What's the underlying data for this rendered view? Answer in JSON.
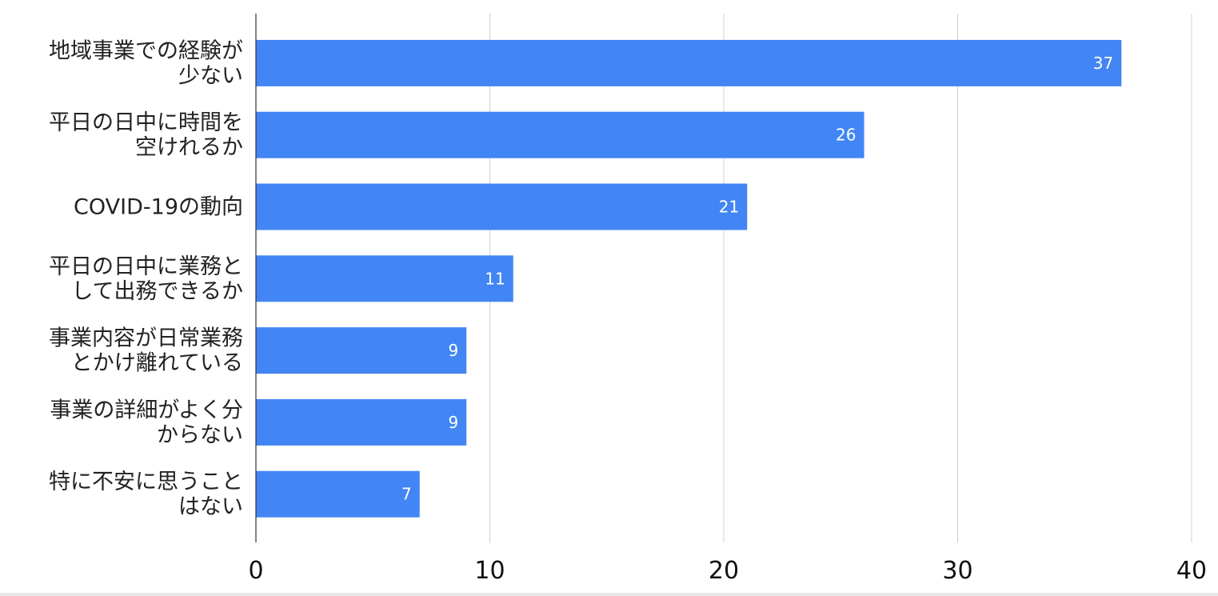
{
  "chart_data": {
    "type": "bar",
    "orientation": "horizontal",
    "categories": [
      [
        "地域事業での経験が",
        "少ない"
      ],
      [
        "平日の日中に時間を",
        "空けれるか"
      ],
      [
        "COVID-19の動向"
      ],
      [
        "平日の日中に業務と",
        "して出務できるか"
      ],
      [
        "事業内容が日常業務",
        "とかけ離れている"
      ],
      [
        "事業の詳細がよく分",
        "からない"
      ],
      [
        "特に不安に思うこと",
        "はない"
      ]
    ],
    "values": [
      37,
      26,
      21,
      11,
      9,
      9,
      7
    ],
    "data_labels": [
      "37",
      "26",
      "21",
      "11",
      "9",
      "9",
      "7"
    ],
    "xlim": [
      0,
      40
    ],
    "x_ticks": [
      0,
      10,
      20,
      30,
      40
    ],
    "x_tick_labels": [
      "0",
      "10",
      "20",
      "30",
      "40"
    ],
    "grid": true,
    "title": "",
    "xlabel": "",
    "ylabel": "",
    "bar_color": "#4285f4"
  }
}
